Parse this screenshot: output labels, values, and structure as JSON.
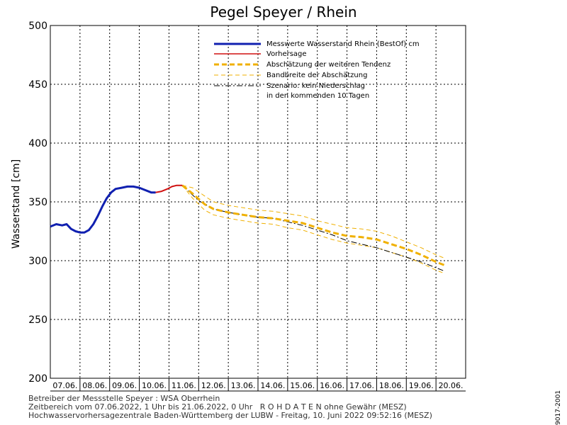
{
  "chart_data": {
    "type": "line",
    "title": "Pegel Speyer / Rhein",
    "ylabel": "Wasserstand [cm]",
    "ylim": [
      200,
      500
    ],
    "yticks": [
      200,
      250,
      300,
      350,
      400,
      450,
      500
    ],
    "xlim": [
      0,
      14
    ],
    "categories": [
      "07.06.",
      "08.06.",
      "09.06.",
      "10.06.",
      "11.06.",
      "12.06.",
      "13.06.",
      "14.06.",
      "15.06.",
      "16.06.",
      "17.06.",
      "18.06.",
      "19.06.",
      "20.06."
    ],
    "grid": true,
    "legend_position": "top-right",
    "series": [
      {
        "name": "Messwerte Wasserstand Rhein (BestOf)  cm",
        "style": "measured",
        "color": "#1020b0",
        "points": [
          [
            0,
            329
          ],
          [
            0.2,
            331
          ],
          [
            0.4,
            330
          ],
          [
            0.55,
            331
          ],
          [
            0.7,
            327
          ],
          [
            0.85,
            325
          ],
          [
            1.0,
            324
          ],
          [
            1.15,
            324
          ],
          [
            1.3,
            326
          ],
          [
            1.45,
            331
          ],
          [
            1.6,
            338
          ],
          [
            1.75,
            346
          ],
          [
            1.9,
            353
          ],
          [
            2.05,
            358
          ],
          [
            2.2,
            361
          ],
          [
            2.4,
            362
          ],
          [
            2.6,
            363
          ],
          [
            2.8,
            363
          ],
          [
            3.0,
            362
          ],
          [
            3.2,
            360
          ],
          [
            3.4,
            358
          ],
          [
            3.55,
            358
          ]
        ]
      },
      {
        "name": "Vorhersage",
        "style": "forecast",
        "color": "#d01010",
        "points": [
          [
            3.55,
            358
          ],
          [
            3.75,
            359
          ],
          [
            3.95,
            361
          ],
          [
            4.1,
            363
          ],
          [
            4.25,
            364
          ],
          [
            4.45,
            364
          ]
        ]
      },
      {
        "name": "Abschätzung der weiteren Tendenz",
        "style": "estimate",
        "color": "#f0b000",
        "points": [
          [
            4.45,
            364
          ],
          [
            4.8,
            357
          ],
          [
            5.2,
            348
          ],
          [
            5.5,
            344
          ],
          [
            6.0,
            341
          ],
          [
            6.5,
            339
          ],
          [
            7.0,
            337
          ],
          [
            7.5,
            336
          ],
          [
            8.0,
            334
          ],
          [
            8.5,
            332
          ],
          [
            9.0,
            328
          ],
          [
            9.5,
            324
          ],
          [
            10.0,
            321
          ],
          [
            10.5,
            320
          ],
          [
            11.0,
            318
          ],
          [
            11.5,
            314
          ],
          [
            12.0,
            310
          ],
          [
            12.5,
            305
          ],
          [
            13.0,
            299
          ],
          [
            13.3,
            296
          ]
        ]
      },
      {
        "name": "Bandbreite der Abschätzung",
        "style": "band",
        "color": "#f0b000",
        "upper": [
          [
            4.45,
            364
          ],
          [
            4.8,
            362
          ],
          [
            5.2,
            355
          ],
          [
            5.5,
            350
          ],
          [
            6.0,
            347
          ],
          [
            6.5,
            345
          ],
          [
            7.0,
            343
          ],
          [
            7.5,
            342
          ],
          [
            8.0,
            340
          ],
          [
            8.5,
            338
          ],
          [
            9.0,
            334
          ],
          [
            9.5,
            331
          ],
          [
            10.0,
            328
          ],
          [
            10.5,
            327
          ],
          [
            11.0,
            325
          ],
          [
            11.5,
            321
          ],
          [
            12.0,
            316
          ],
          [
            12.5,
            311
          ],
          [
            13.0,
            305
          ],
          [
            13.3,
            302
          ]
        ],
        "lower": [
          [
            4.45,
            364
          ],
          [
            4.8,
            353
          ],
          [
            5.2,
            343
          ],
          [
            5.5,
            339
          ],
          [
            6.0,
            336
          ],
          [
            6.5,
            334
          ],
          [
            7.0,
            332
          ],
          [
            7.5,
            331
          ],
          [
            8.0,
            328
          ],
          [
            8.5,
            326
          ],
          [
            9.0,
            322
          ],
          [
            9.5,
            318
          ],
          [
            10.0,
            315
          ],
          [
            10.5,
            313
          ],
          [
            11.0,
            311
          ],
          [
            11.5,
            307
          ],
          [
            12.0,
            303
          ],
          [
            12.5,
            298
          ],
          [
            13.0,
            292
          ],
          [
            13.3,
            289
          ]
        ]
      },
      {
        "name": "Szenario: kein Niederschlag",
        "name_line2": "in den kommenden 10 Tagen",
        "style": "scenario",
        "color": "#000000",
        "points": [
          [
            4.45,
            364
          ],
          [
            5.0,
            351
          ],
          [
            5.5,
            344
          ],
          [
            6.0,
            341
          ],
          [
            6.5,
            339
          ],
          [
            7.0,
            337
          ],
          [
            7.5,
            336
          ],
          [
            8.0,
            333
          ],
          [
            8.5,
            330
          ],
          [
            9.0,
            326
          ],
          [
            9.5,
            322
          ],
          [
            10.0,
            317
          ],
          [
            10.5,
            314
          ],
          [
            11.0,
            311
          ],
          [
            11.5,
            307
          ],
          [
            12.0,
            303
          ],
          [
            12.5,
            299
          ],
          [
            13.0,
            294
          ],
          [
            13.3,
            291
          ]
        ]
      }
    ]
  },
  "footer": {
    "line1": "Betreiber der Messstelle Speyer : WSA Oberrhein",
    "line2": "Zeitbereich vom 07.06.2022, 1 Uhr bis 21.06.2022, 0 Uhr   R O H D A T E N ohne Gewähr (MESZ)",
    "line3": "Hochwasservorhersagezentrale Baden-Württemberg der LUBW - Freitag, 10. Juni 2022 09:52:16 (MESZ)"
  },
  "side_id": "9017-2001"
}
